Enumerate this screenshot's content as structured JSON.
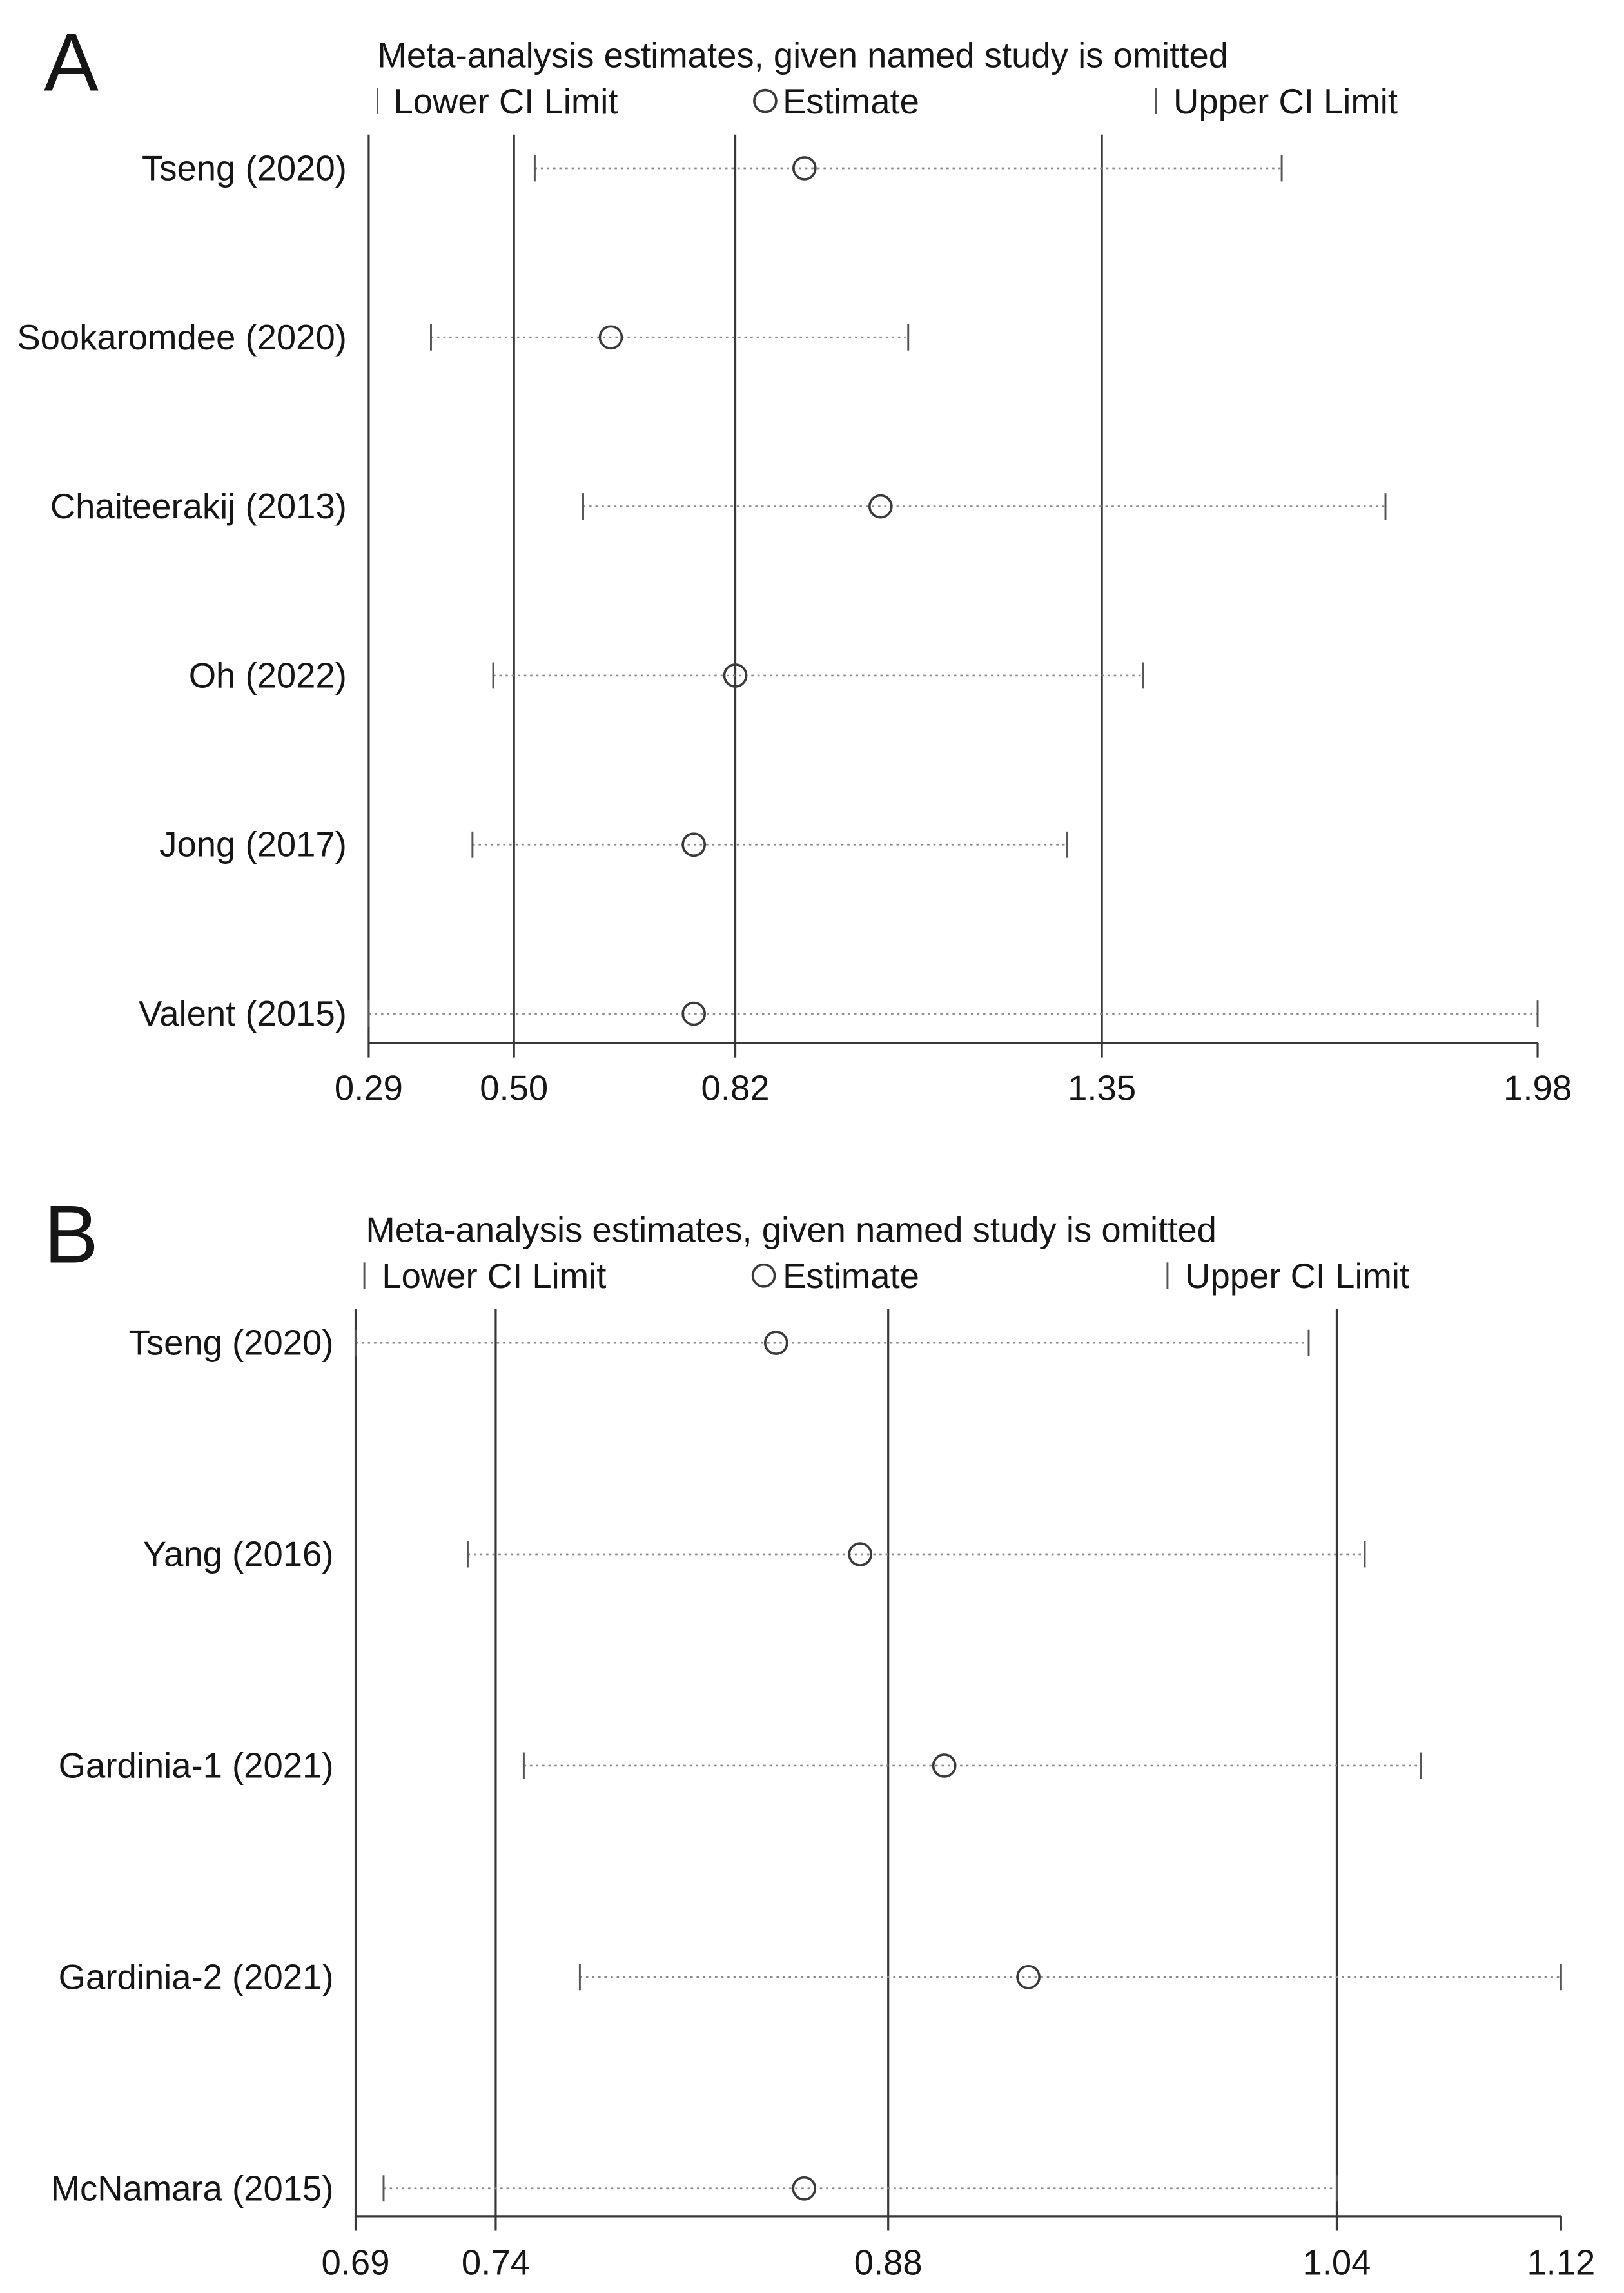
{
  "chart_data": [
    {
      "panel": "A",
      "type": "scatter",
      "title": "Meta-analysis estimates, given named study is omitted",
      "categories": [
        "Tseng (2020)",
        "Sookaromdee (2020)",
        "Chaiteerakij (2013)",
        "Oh (2022)",
        "Jong (2017)",
        "Valent (2015)"
      ],
      "series": [
        {
          "name": "Lower CI Limit",
          "values": [
            0.53,
            0.38,
            0.6,
            0.47,
            0.44,
            0.29
          ]
        },
        {
          "name": "Estimate",
          "values": [
            0.92,
            0.64,
            1.03,
            0.82,
            0.76,
            0.76
          ]
        },
        {
          "name": "Upper CI Limit",
          "values": [
            1.61,
            1.07,
            1.76,
            1.41,
            1.3,
            1.98
          ]
        }
      ],
      "xlim": [
        0.29,
        1.98
      ],
      "xticks": [
        "0.29",
        "0.50",
        "0.82",
        "1.35",
        "1.98"
      ],
      "reference_lines": [
        0.5,
        0.82,
        1.35
      ]
    },
    {
      "panel": "B",
      "type": "scatter",
      "title": "Meta-analysis estimates, given named study is omitted",
      "categories": [
        "Tseng (2020)",
        "Yang (2016)",
        "Gardinia-1 (2021)",
        "Gardinia-2 (2021)",
        "McNamara (2015)"
      ],
      "series": [
        {
          "name": "Lower CI Limit",
          "values": [
            0.69,
            0.73,
            0.75,
            0.77,
            0.7
          ]
        },
        {
          "name": "Estimate",
          "values": [
            0.84,
            0.87,
            0.9,
            0.93,
            0.85
          ]
        },
        {
          "name": "Upper CI Limit",
          "values": [
            1.03,
            1.05,
            1.07,
            1.12,
            1.04
          ]
        }
      ],
      "xlim": [
        0.69,
        1.12
      ],
      "xticks": [
        "0.69",
        "0.74",
        "0.88",
        "1.04",
        "1.12"
      ],
      "reference_lines": [
        0.74,
        0.88,
        1.04
      ]
    }
  ],
  "colors": {
    "axis": "#383838",
    "whisker": "#8a8a8a",
    "cap": "#555555",
    "marker": "#3a3a3a"
  }
}
